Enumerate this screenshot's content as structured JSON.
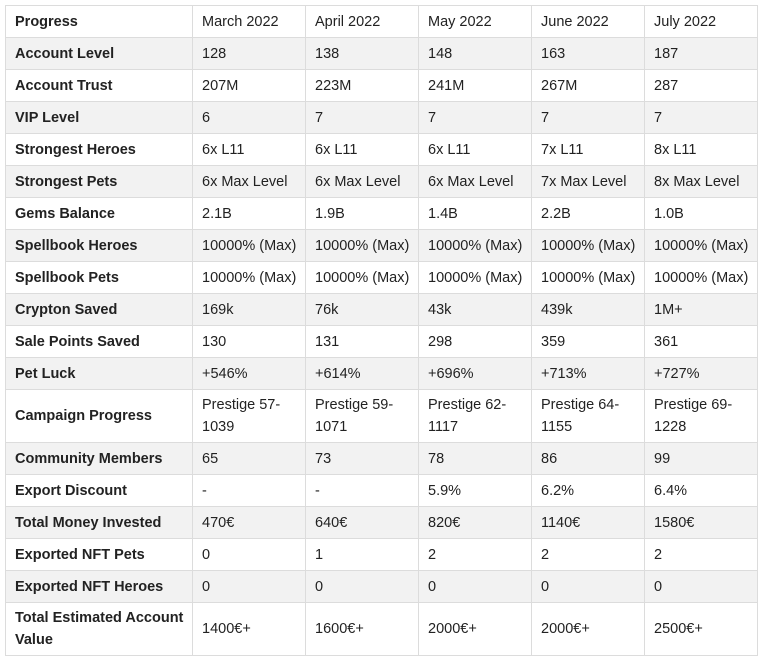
{
  "table": {
    "corner_header": "Progress",
    "months": [
      "March 2022",
      "April 2022",
      "May 2022",
      "June 2022",
      "July 2022"
    ],
    "rows": [
      {
        "label": "Account Level",
        "values": [
          "128",
          "138",
          "148",
          "163",
          "187"
        ]
      },
      {
        "label": "Account Trust",
        "values": [
          "207M",
          "223M",
          "241M",
          "267M",
          "287"
        ]
      },
      {
        "label": "VIP Level",
        "values": [
          "6",
          "7",
          "7",
          "7",
          "7"
        ]
      },
      {
        "label": "Strongest Heroes",
        "values": [
          "6x L11",
          "6x L11",
          "6x L11",
          "7x L11",
          "8x L11"
        ]
      },
      {
        "label": "Strongest Pets",
        "values": [
          "6x Max Level",
          "6x Max Level",
          "6x Max Level",
          "7x Max Level",
          "8x Max Level"
        ]
      },
      {
        "label": "Gems Balance",
        "values": [
          "2.1B",
          "1.9B",
          "1.4B",
          "2.2B",
          "1.0B"
        ]
      },
      {
        "label": "Spellbook Heroes",
        "values": [
          "10000% (Max)",
          "10000% (Max)",
          "10000% (Max)",
          "10000% (Max)",
          "10000% (Max)"
        ]
      },
      {
        "label": "Spellbook Pets",
        "values": [
          "10000% (Max)",
          "10000% (Max)",
          "10000% (Max)",
          "10000% (Max)",
          "10000% (Max)"
        ]
      },
      {
        "label": "Crypton Saved",
        "values": [
          "169k",
          "76k",
          "43k",
          "439k",
          "1M+"
        ]
      },
      {
        "label": "Sale Points Saved",
        "values": [
          "130",
          "131",
          "298",
          "359",
          "361"
        ]
      },
      {
        "label": "Pet Luck",
        "values": [
          "+546%",
          "+614%",
          "+696%",
          "+713%",
          "+727%"
        ]
      },
      {
        "label": "Campaign Progress",
        "values": [
          "Prestige 57-1039",
          "Prestige 59-1071",
          "Prestige 62-1117",
          "Prestige 64-1155",
          "Prestige 69-1228"
        ]
      },
      {
        "label": "Community Members",
        "values": [
          "65",
          "73",
          "78",
          "86",
          "99"
        ]
      },
      {
        "label": "Export Discount",
        "values": [
          "-",
          "-",
          "5.9%",
          "6.2%",
          "6.4%"
        ]
      },
      {
        "label": "Total Money Invested",
        "values": [
          "470€",
          "640€",
          "820€",
          "1140€",
          "1580€"
        ]
      },
      {
        "label": "Exported NFT Pets",
        "values": [
          "0",
          "1",
          "2",
          "2",
          "2"
        ]
      },
      {
        "label": "Exported NFT Heroes",
        "values": [
          "0",
          "0",
          "0",
          "0",
          "0"
        ]
      },
      {
        "label": "Total Estimated Account Value",
        "values": [
          "1400€+",
          "1600€+",
          "2000€+",
          "2000€+",
          "2500€+"
        ]
      }
    ]
  }
}
